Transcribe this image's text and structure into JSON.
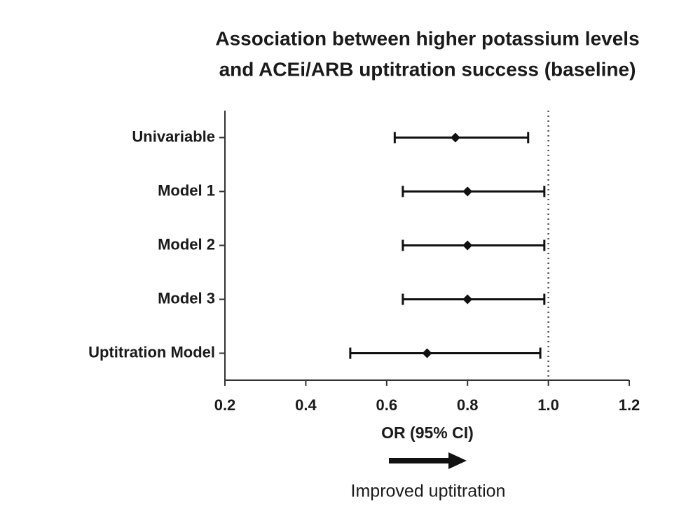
{
  "chart_data": {
    "type": "forest",
    "title": [
      "Association between higher potassium levels",
      "and ACEi/ARB uptitration success (baseline)"
    ],
    "categories": [
      "Univariable",
      "Model 1",
      "Model 2",
      "Model 3",
      "Uptitration Model"
    ],
    "values": [
      0.77,
      0.8,
      0.8,
      0.8,
      0.7
    ],
    "lower": [
      0.62,
      0.64,
      0.64,
      0.64,
      0.51
    ],
    "upper": [
      0.95,
      0.99,
      0.99,
      0.99,
      0.98
    ],
    "color": "#111111",
    "xlim": [
      0.2,
      1.2
    ],
    "xticks": [
      0.2,
      0.4,
      0.6,
      0.8,
      {
        "value": 1,
        "label": "1.0"
      },
      1.2
    ],
    "x_label": "OR (95% CI)",
    "reference_line": 1,
    "annotation": "Improved uptitration"
  }
}
